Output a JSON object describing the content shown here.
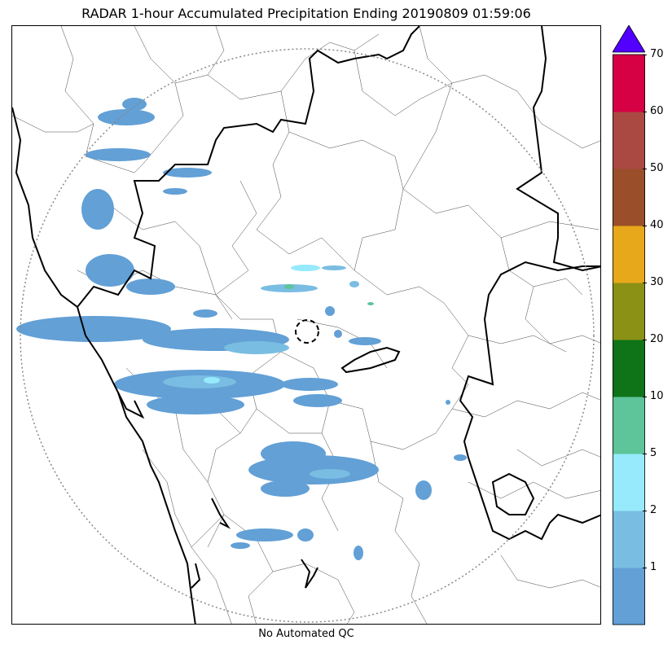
{
  "title": "RADAR 1-hour Accumulated Precipitation Ending 20190809 01:59:06",
  "footer": "No Automated QC",
  "colorbar": {
    "ticks": [
      "1",
      "2",
      "5",
      "10",
      "20",
      "30",
      "40",
      "50",
      "60",
      "70"
    ],
    "colors": [
      "#62a0d6",
      "#79bde2",
      "#96eafc",
      "#5ec49a",
      "#0f7318",
      "#8b9115",
      "#e8a81b",
      "#9a4f2a",
      "#a94942",
      "#d60045"
    ],
    "extend_color": "#5200ff",
    "extend_direction": "max"
  },
  "map": {
    "range_ring": "dotted",
    "radar_marker": "dashed-circle",
    "precip_colors": {
      "light": "#62a0d6",
      "moderate": "#79bde2",
      "heavy": "#96eafc",
      "peak": "#5ec49a"
    },
    "icons": [
      "range-ring-icon",
      "radar-site-icon"
    ]
  }
}
